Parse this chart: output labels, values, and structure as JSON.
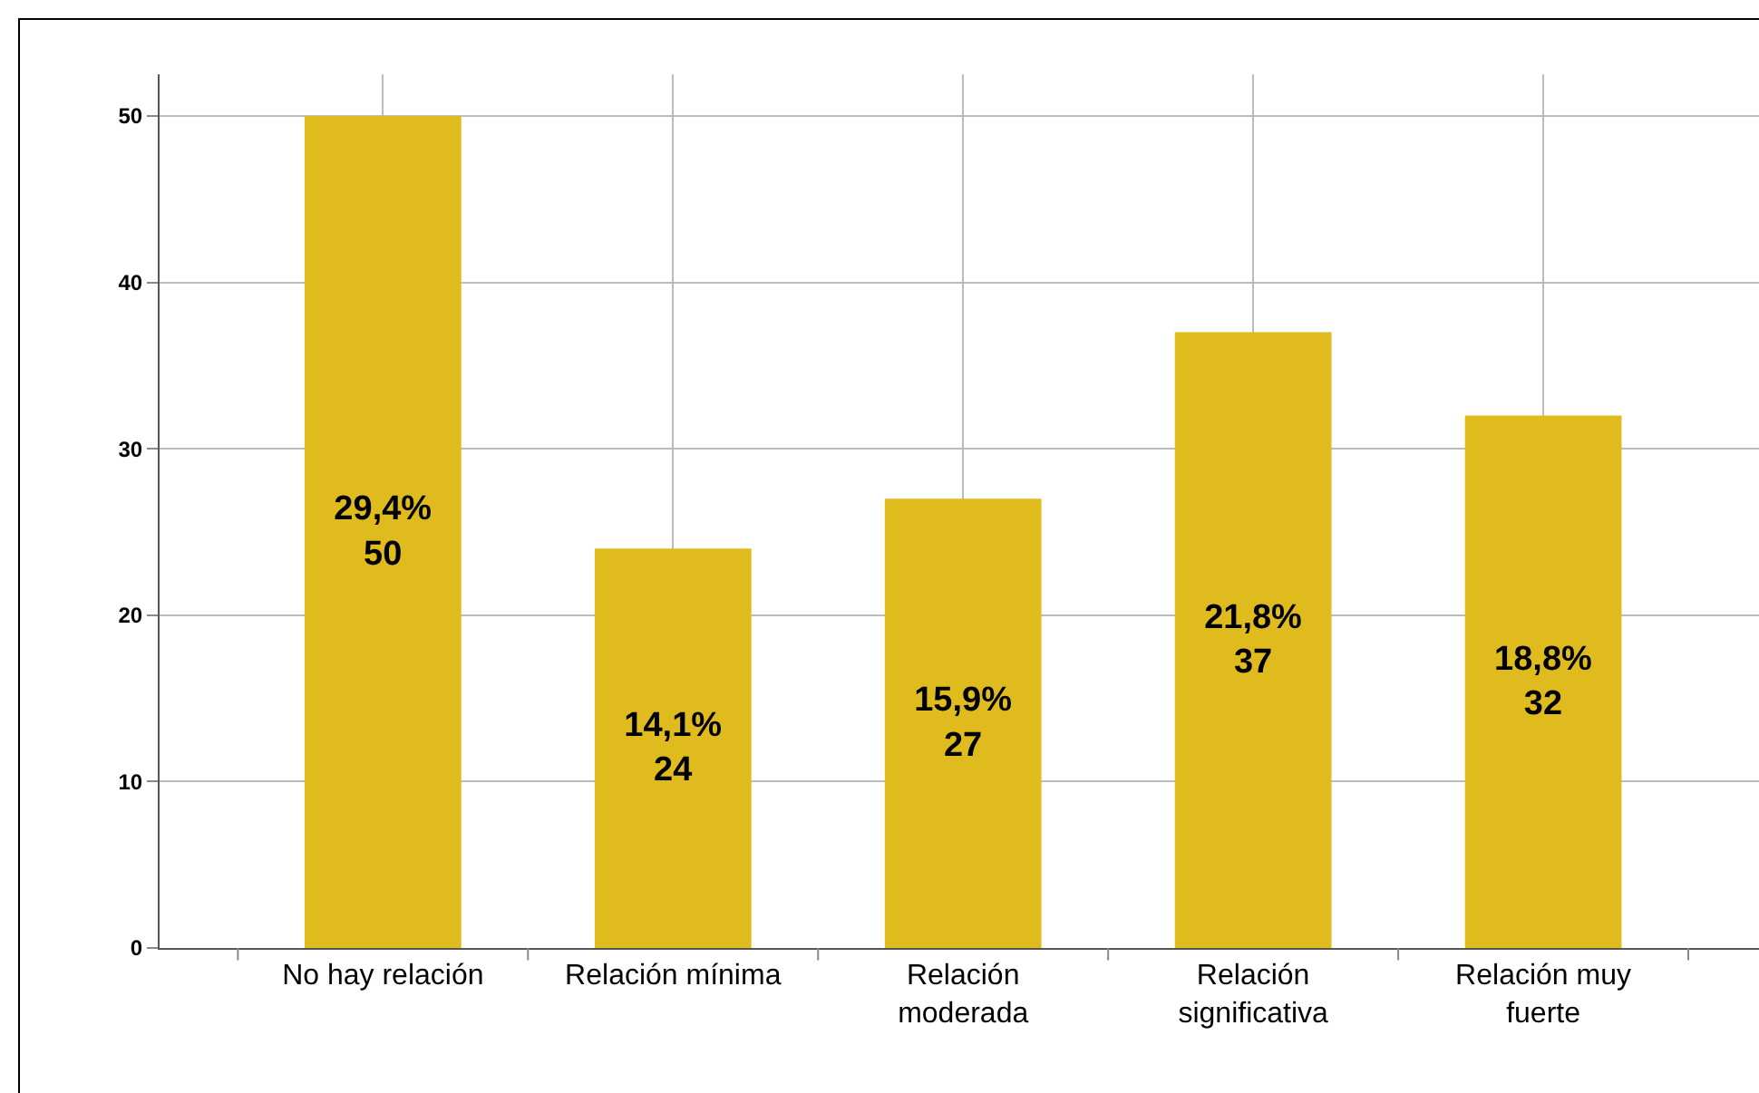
{
  "chart_data": {
    "type": "bar",
    "categories": [
      "No hay relación",
      "Relación mínima",
      "Relación moderada",
      "Relación significativa",
      "Relación muy fuerte"
    ],
    "values": [
      50,
      24,
      27,
      37,
      32
    ],
    "value_labels": [
      "29,4%\n50",
      "14,1%\n24",
      "15,9%\n27",
      "21,8%\n37",
      "18,8%\n32"
    ],
    "color": "#e0bb1e",
    "ylim": [
      0,
      52.5
    ],
    "yticks": [
      0,
      10,
      20,
      30,
      40,
      50
    ],
    "grid": true
  }
}
